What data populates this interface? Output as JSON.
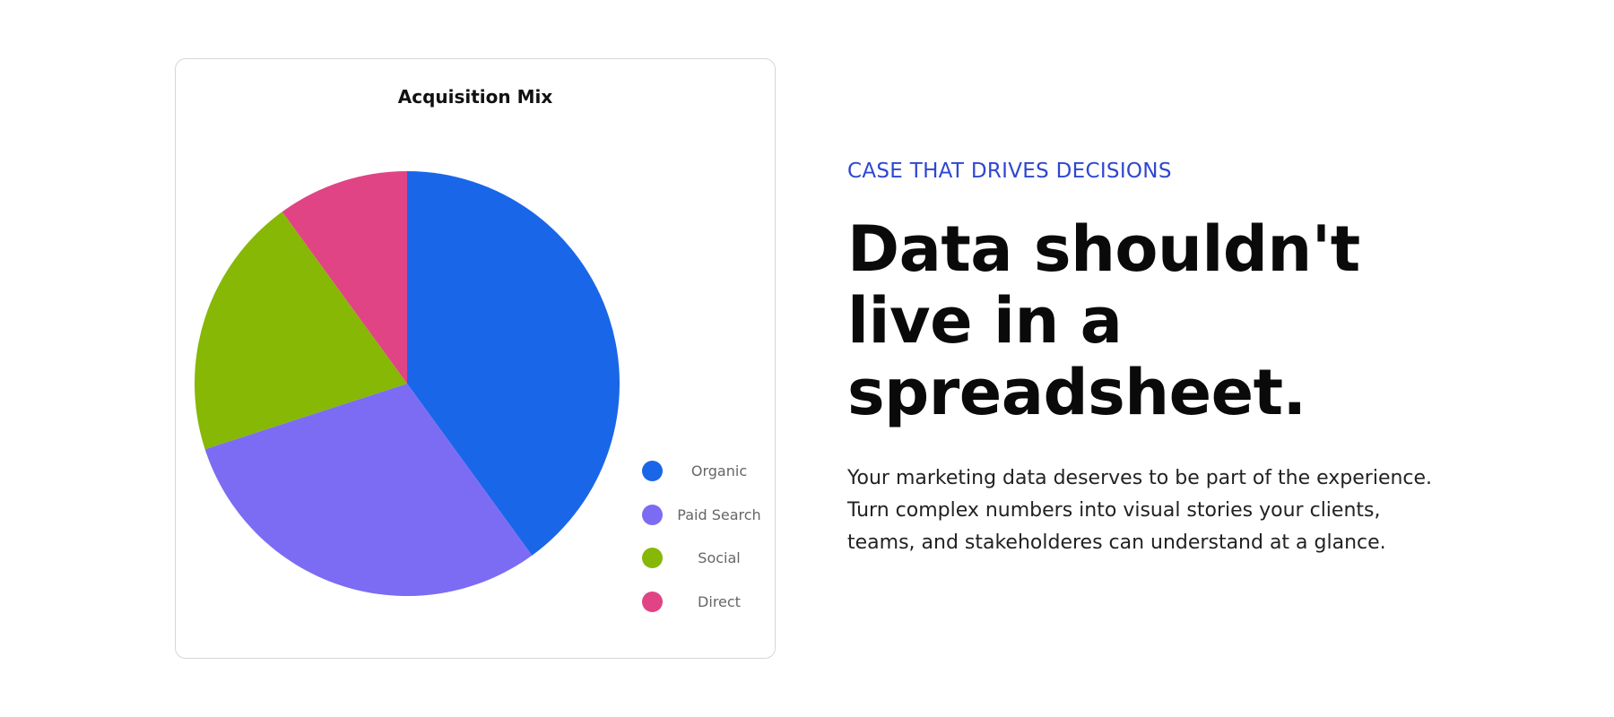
{
  "chart_data": {
    "type": "pie",
    "title": "Acquisition Mix",
    "categories": [
      "Organic",
      "Paid Search",
      "Social",
      "Direct"
    ],
    "values": [
      40,
      30,
      20,
      10
    ],
    "colors": [
      "#1a66e8",
      "#7b6cf3",
      "#86b805",
      "#e04485"
    ],
    "legend": "right-bottom",
    "start_angle": "top",
    "direction": "clockwise"
  },
  "copy": {
    "eyebrow": "CASE THAT DRIVES DECISIONS",
    "headline": "Data shouldn't\nlive in a\nspreadsheet.",
    "body": "Your marketing data deserves to be part of the experience.\nTurn complex numbers into visual stories your clients,\nteams, and stakeholderes can understand at a glance."
  }
}
